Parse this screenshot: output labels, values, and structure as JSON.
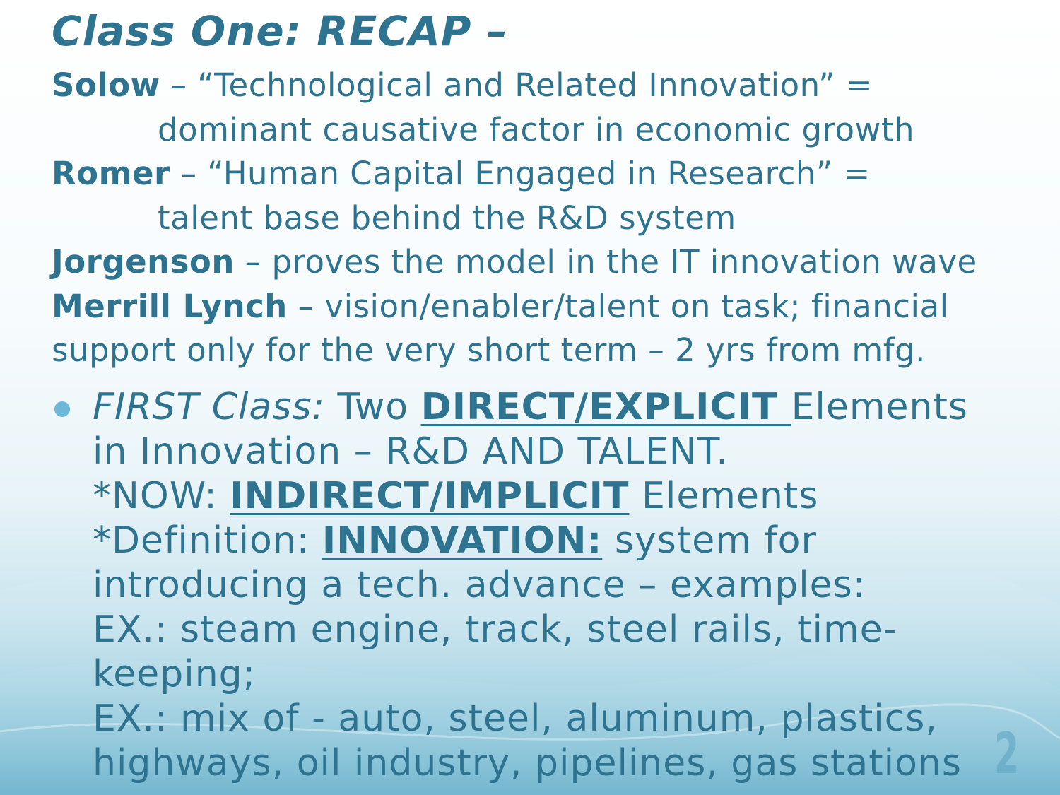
{
  "title": "Class One: RECAP –",
  "recap": {
    "solow_name": "Solow",
    "solow_text": " – “Technological and Related Innovation” =",
    "solow_cont": "dominant causative factor in economic growth",
    "romer_name": "Romer",
    "romer_text": " – “Human Capital Engaged in Research” =",
    "romer_cont": "talent base behind the R&D system",
    "jorgenson_name": "Jorgenson",
    "jorgenson_text": " – proves the model in the IT innovation wave",
    "merrill_name": "Merrill Lynch",
    "merrill_text": " – vision/enabler/talent on task; financial",
    "merrill_cont": "support only for the very short term – 2 yrs from mfg."
  },
  "bullet": {
    "first_class_label": "FIRST Class:",
    "first_class_text": " Two ",
    "direct_explicit": "DIRECT/EXPLICIT ",
    "elements_1": "Elements",
    "line2": "in  Innovation – R&D AND TALENT.",
    "now_prefix": "*NOW: ",
    "indirect_implicit": "INDIRECT/IMPLICIT",
    "elements_2": " Elements",
    "definition_prefix": "*Definition: ",
    "innovation_label": "INNOVATION:",
    "definition_text": " system for",
    "line5": "introducing a tech. advance – examples:",
    "line6": "EX.: steam engine, track, steel rails, time-",
    "line7": "keeping;",
    "line8": "EX.: mix of - auto, steel, aluminum, plastics,",
    "line9": "highways, oil industry, pipelines, gas stations"
  },
  "page_number": "2",
  "colors": {
    "text": "#2e7390",
    "bullet": "#6db8d8",
    "background_bottom": "#86c3d8"
  }
}
